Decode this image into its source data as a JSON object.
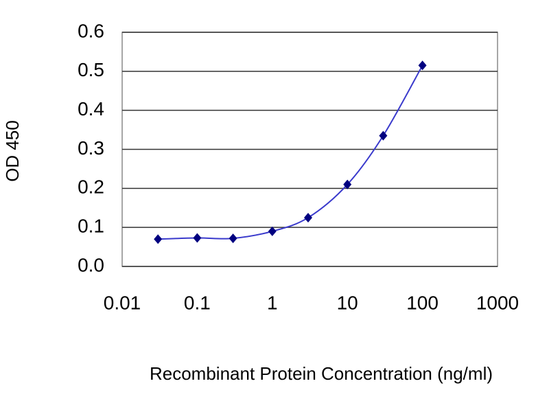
{
  "chart_data": {
    "type": "line",
    "x_label": "Recombinant Protein Concentration (ng/ml)",
    "y_label": "OD 450",
    "series": [
      {
        "name": "OD",
        "color": "#000080",
        "line_color": "#3a3acc",
        "x": [
          0.03,
          0.1,
          0.3,
          1,
          3,
          10,
          30,
          100
        ],
        "values": [
          0.07,
          0.073,
          0.072,
          0.09,
          0.125,
          0.21,
          0.335,
          0.515
        ]
      }
    ],
    "xscale": "log",
    "xlim": [
      0.01,
      1000
    ],
    "xticks": [
      0.01,
      0.1,
      1,
      10,
      100,
      1000
    ],
    "ylim": [
      0,
      0.6
    ],
    "yticks": [
      {
        "value": 0,
        "label": "0.0"
      },
      0.1,
      0.2,
      0.3,
      0.4,
      0.5,
      0.6
    ],
    "grid": true
  }
}
